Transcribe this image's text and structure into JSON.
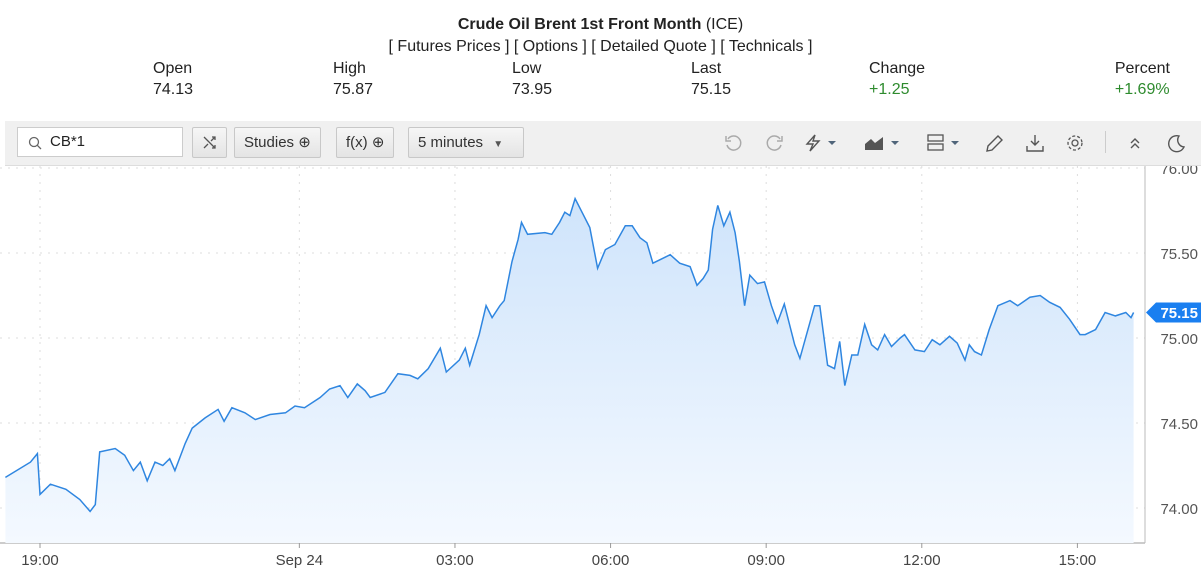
{
  "header": {
    "title_bold": "Crude Oil Brent 1st Front Month",
    "title_suffix": "(ICE)",
    "links": [
      "[ Futures Prices ]",
      "[ Options ]",
      "[ Detailed Quote ]",
      "[ Technicals ]"
    ]
  },
  "stats": [
    {
      "label": "Open",
      "value": "74.13"
    },
    {
      "label": "High",
      "value": "75.87"
    },
    {
      "label": "Low",
      "value": "73.95"
    },
    {
      "label": "Last",
      "value": "75.15"
    },
    {
      "label": "Change",
      "value": "+1.25"
    },
    {
      "label": "Percent",
      "value": "+1.69%"
    }
  ],
  "colors": {
    "positive": "#2e8b2e",
    "line": "#2f86e0",
    "fill": "#cfe4fb",
    "last_badge": "#1a7ff0"
  },
  "toolbar": {
    "symbol": "CB*1",
    "studies": "Studies",
    "fx": "f(x)",
    "interval": "5 minutes",
    "icons": [
      "undo-icon",
      "redo-icon",
      "lightning-icon",
      "chart-type-icon",
      "layout-icon",
      "pencil-icon",
      "download-icon",
      "gear-icon",
      "collapse-icon",
      "dark-mode-icon"
    ]
  },
  "chart_data": {
    "type": "area",
    "title": "",
    "xlabel": "",
    "ylabel": "",
    "ylim": [
      73.9,
      76.0
    ],
    "y_ticks": [
      "74.00",
      "74.50",
      "75.00",
      "75.50",
      "76.00"
    ],
    "x_ticks": [
      "19:00",
      "Sep 24",
      "03:00",
      "06:00",
      "09:00",
      "12:00",
      "15:00"
    ],
    "grid": true,
    "last_value": "75.15",
    "x": [
      "18:20",
      "18:49",
      "18:57",
      "19:00",
      "19:12",
      "19:30",
      "19:46",
      "19:58",
      "20:04",
      "20:09",
      "20:27",
      "20:38",
      "20:48",
      "20:56",
      "21:04",
      "21:13",
      "21:22",
      "21:30",
      "21:36",
      "21:48",
      "21:56",
      "22:11",
      "22:26",
      "22:33",
      "22:42",
      "22:57",
      "23:09",
      "23:26",
      "23:44",
      "23:55",
      "00:06",
      "00:24",
      "00:35",
      "00:47",
      "00:56",
      "01:07",
      "01:16",
      "01:22",
      "01:39",
      "01:54",
      "02:08",
      "02:17",
      "02:29",
      "02:43",
      "02:50",
      "03:05",
      "03:12",
      "03:17",
      "03:28",
      "03:36",
      "03:43",
      "03:52",
      "03:57",
      "04:06",
      "04:13",
      "04:17",
      "04:24",
      "04:44",
      "04:52",
      "05:01",
      "05:07",
      "05:13",
      "05:19",
      "05:27",
      "05:36",
      "05:45",
      "05:54",
      "06:05",
      "06:17",
      "06:25",
      "06:34",
      "06:42",
      "06:49",
      "06:57",
      "07:09",
      "07:20",
      "07:32",
      "07:40",
      "07:47",
      "07:53",
      "07:58",
      "08:04",
      "08:11",
      "08:18",
      "08:24",
      "08:29",
      "08:35",
      "08:41",
      "08:50",
      "08:58",
      "09:06",
      "09:13",
      "09:21",
      "09:33",
      "09:39",
      "09:45",
      "09:56",
      "10:02",
      "10:11",
      "10:19",
      "10:25",
      "10:31",
      "10:39",
      "10:46",
      "10:54",
      "11:02",
      "11:09",
      "11:17",
      "11:25",
      "11:35",
      "11:40",
      "11:52",
      "12:03",
      "12:12",
      "12:21",
      "12:32",
      "12:41",
      "12:50",
      "12:55",
      "13:01",
      "13:09",
      "13:18",
      "13:28",
      "13:42",
      "13:51",
      "14:05",
      "14:17",
      "14:28",
      "14:40",
      "14:51",
      "15:03",
      "15:09",
      "15:21",
      "15:32",
      "15:44",
      "15:56",
      "16:02",
      "16:05"
    ],
    "values": [
      74.18,
      74.27,
      74.32,
      74.08,
      74.14,
      74.11,
      74.05,
      73.98,
      74.02,
      74.33,
      74.35,
      74.31,
      74.22,
      74.27,
      74.16,
      74.27,
      74.25,
      74.29,
      74.22,
      74.38,
      74.47,
      74.53,
      74.58,
      74.51,
      74.59,
      74.56,
      74.52,
      74.55,
      74.56,
      74.6,
      74.59,
      74.65,
      74.7,
      74.72,
      74.65,
      74.73,
      74.69,
      74.65,
      74.68,
      74.79,
      74.78,
      74.76,
      74.82,
      74.94,
      74.8,
      74.87,
      74.94,
      74.84,
      75.02,
      75.19,
      75.12,
      75.19,
      75.22,
      75.45,
      75.58,
      75.68,
      75.61,
      75.62,
      75.61,
      75.68,
      75.74,
      75.72,
      75.82,
      75.74,
      75.65,
      75.41,
      75.52,
      75.55,
      75.66,
      75.66,
      75.59,
      75.56,
      75.44,
      75.46,
      75.49,
      75.44,
      75.42,
      75.31,
      75.35,
      75.4,
      75.64,
      75.78,
      75.66,
      75.74,
      75.62,
      75.45,
      75.19,
      75.37,
      75.32,
      75.33,
      75.19,
      75.09,
      75.2,
      74.96,
      74.88,
      74.99,
      75.19,
      75.19,
      74.84,
      74.82,
      74.98,
      74.72,
      74.9,
      74.9,
      75.08,
      74.96,
      74.93,
      75.02,
      74.95,
      75.0,
      75.02,
      74.93,
      74.92,
      74.99,
      74.96,
      75.01,
      74.97,
      74.87,
      74.96,
      74.92,
      74.9,
      75.05,
      75.19,
      75.22,
      75.19,
      75.24,
      75.25,
      75.21,
      75.18,
      75.11,
      75.02,
      75.02,
      75.05,
      75.15,
      75.13,
      75.15,
      75.12,
      75.15
    ]
  }
}
